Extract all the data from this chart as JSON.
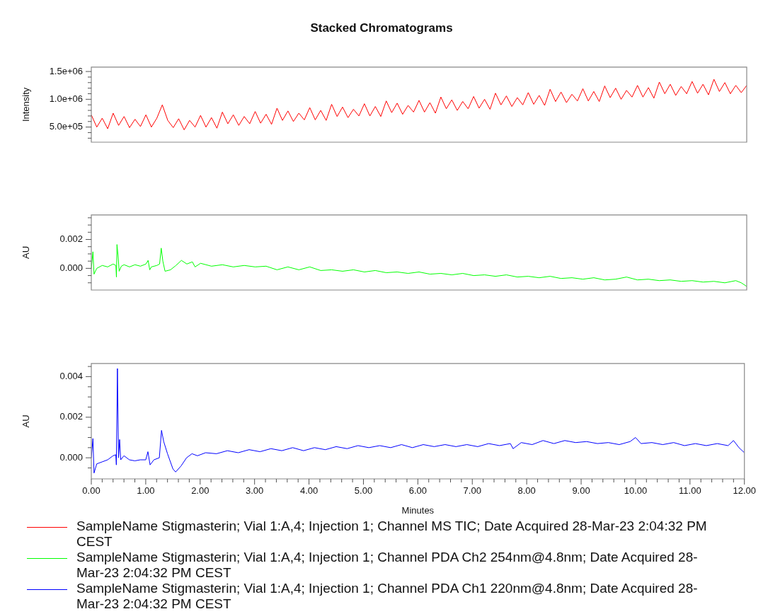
{
  "chart_data": [
    {
      "type": "line",
      "title": "Stacked Chromatograms",
      "ylabel": "Intensity",
      "xlim": [
        0,
        12
      ],
      "ylim": [
        228000,
        1580000
      ],
      "tick_labels": "y",
      "legend": "bottom",
      "yticks": [
        {
          "value": 300000,
          "label": null
        },
        {
          "value": 400000,
          "label": null
        },
        {
          "value": 500000,
          "label": "5.0e+05"
        },
        {
          "value": 600000,
          "label": null
        },
        {
          "value": 700000,
          "label": null
        },
        {
          "value": 800000,
          "label": null
        },
        {
          "value": 900000,
          "label": null
        },
        {
          "value": 1000000,
          "label": "1.0e+06"
        },
        {
          "value": 1100000,
          "label": null
        },
        {
          "value": 1200000,
          "label": null
        },
        {
          "value": 1300000,
          "label": null
        },
        {
          "value": 1400000,
          "label": null
        },
        {
          "value": 1500000,
          "label": "1.5e+06"
        }
      ],
      "series": [
        {
          "name": "SampleName Stigmasterin; Vial 1:A,4; Injection 1; Channel MS TIC; Date Acquired 28-Mar-23 2:04:32 PM CEST",
          "color": "#ff0000",
          "x": [
            0,
            0.1,
            0.2,
            0.3,
            0.4,
            0.5,
            0.6,
            0.7,
            0.8,
            0.9,
            1,
            1.1,
            1.2,
            1.3,
            1.4,
            1.5,
            1.6,
            1.7,
            1.8,
            1.9,
            2,
            2.1,
            2.2,
            2.3,
            2.4,
            2.5,
            2.6,
            2.7,
            2.8,
            2.9,
            3,
            3.1,
            3.2,
            3.3,
            3.4,
            3.5,
            3.6,
            3.7,
            3.8,
            3.9,
            4,
            4.1,
            4.2,
            4.3,
            4.4,
            4.5,
            4.6,
            4.7,
            4.8,
            4.9,
            5,
            5.1,
            5.2,
            5.3,
            5.4,
            5.5,
            5.6,
            5.7,
            5.8,
            5.9,
            6,
            6.1,
            6.2,
            6.3,
            6.4,
            6.5,
            6.6,
            6.7,
            6.8,
            6.9,
            7,
            7.1,
            7.2,
            7.3,
            7.4,
            7.5,
            7.6,
            7.7,
            7.8,
            7.9,
            8,
            8.1,
            8.2,
            8.3,
            8.4,
            8.5,
            8.6,
            8.7,
            8.8,
            8.9,
            9,
            9.1,
            9.2,
            9.3,
            9.4,
            9.5,
            9.6,
            9.7,
            9.8,
            9.9,
            10,
            10.1,
            10.2,
            10.3,
            10.4,
            10.5,
            10.6,
            10.7,
            10.8,
            10.9,
            11,
            11.1,
            11.2,
            11.3,
            11.4,
            11.5,
            11.6,
            11.7,
            11.8,
            11.9,
            12
          ],
          "values": [
            720000,
            500000,
            660000,
            470000,
            750000,
            530000,
            690000,
            490000,
            640000,
            510000,
            720000,
            500000,
            660000,
            900000,
            620000,
            490000,
            650000,
            450000,
            620000,
            500000,
            710000,
            500000,
            670000,
            480000,
            770000,
            560000,
            720000,
            530000,
            690000,
            560000,
            780000,
            570000,
            730000,
            550000,
            840000,
            620000,
            790000,
            600000,
            750000,
            630000,
            850000,
            630000,
            800000,
            620000,
            910000,
            690000,
            860000,
            670000,
            820000,
            700000,
            920000,
            700000,
            870000,
            690000,
            970000,
            760000,
            930000,
            730000,
            890000,
            770000,
            980000,
            770000,
            940000,
            750000,
            1040000,
            830000,
            990000,
            800000,
            960000,
            830000,
            1050000,
            840000,
            1000000,
            820000,
            1110000,
            900000,
            1060000,
            870000,
            1030000,
            900000,
            1120000,
            910000,
            1070000,
            890000,
            1180000,
            960000,
            1130000,
            940000,
            1090000,
            970000,
            1190000,
            970000,
            1140000,
            960000,
            1240000,
            1030000,
            1200000,
            1000000,
            1160000,
            1040000,
            1250000,
            1040000,
            1210000,
            1020000,
            1310000,
            1100000,
            1270000,
            1070000,
            1230000,
            1100000,
            1320000,
            1110000,
            1270000,
            1080000,
            1360000,
            1140000,
            1300000,
            1100000,
            1250000,
            1120000,
            1250000
          ]
        }
      ]
    },
    {
      "type": "line",
      "ylabel": "AU",
      "xlim": [
        0,
        12
      ],
      "ylim": [
        -0.0015,
        0.0037
      ],
      "tick_labels": "y",
      "legend": "bottom",
      "yticks": [
        {
          "value": -0.001,
          "label": null
        },
        {
          "value": -0.0005,
          "label": null
        },
        {
          "value": 0,
          "label": "0.000"
        },
        {
          "value": 0.0005,
          "label": null
        },
        {
          "value": 0.001,
          "label": null
        },
        {
          "value": 0.0015,
          "label": null
        },
        {
          "value": 0.002,
          "label": "0.002"
        },
        {
          "value": 0.0025,
          "label": null
        },
        {
          "value": 0.003,
          "label": null
        },
        {
          "value": 0.0035,
          "label": null
        }
      ],
      "series": [
        {
          "name": "SampleName Stigmasterin; Vial 1:A,4; Injection 1; Channel PDA Ch2 254nm@4.8nm; Date Acquired 28-Mar-23 2:04:32 PM CEST",
          "color": "#00ff00",
          "x": [
            0,
            0.03,
            0.05,
            0.1,
            0.2,
            0.3,
            0.4,
            0.45,
            0.46,
            0.47,
            0.49,
            0.51,
            0.55,
            0.6,
            0.7,
            0.8,
            0.9,
            1,
            1.04,
            1.07,
            1.1,
            1.2,
            1.25,
            1.28,
            1.31,
            1.35,
            1.45,
            1.55,
            1.65,
            1.75,
            1.85,
            1.9,
            2,
            2.2,
            2.4,
            2.6,
            2.8,
            3,
            3.2,
            3.4,
            3.6,
            3.8,
            4,
            4.2,
            4.4,
            4.6,
            4.8,
            5,
            5.2,
            5.4,
            5.6,
            5.8,
            6,
            6.2,
            6.4,
            6.6,
            6.8,
            7,
            7.2,
            7.4,
            7.6,
            7.8,
            8,
            8.2,
            8.4,
            8.6,
            8.8,
            9,
            9.2,
            9.4,
            9.6,
            9.8,
            10,
            10.2,
            10.4,
            10.6,
            10.8,
            11,
            11.2,
            11.4,
            11.6,
            11.8,
            11.9,
            12
          ],
          "values": [
            0,
            0.00115,
            -0.0004,
            0,
            0.0002,
            0.0001,
            0.0003,
            0.0002,
            -0.0006,
            0.00165,
            0.0009,
            -0.0002,
            0.00015,
            0.00025,
            0.0001,
            0.00025,
            0.00015,
            0.0003,
            0.00055,
            -0.0001,
            0.0001,
            0.0002,
            0.0003,
            0.0014,
            0.0005,
            -0.0002,
            -0.0001,
            0.0002,
            0.00055,
            0.0003,
            0.00045,
            0.0001,
            0.00035,
            0.00015,
            0.00025,
            0.0001,
            0.0002,
            0.0001,
            0.00015,
            -0.0001,
            0.0001,
            -0.0001,
            0.0001,
            -0.00015,
            -0.0001,
            -0.0002,
            -0.0001,
            -0.00025,
            -0.00015,
            -0.0003,
            -0.00025,
            -0.00035,
            -0.00025,
            -0.0004,
            -0.00035,
            -0.00045,
            -0.00035,
            -0.0005,
            -0.00045,
            -0.00055,
            -0.00045,
            -0.0006,
            -0.00055,
            -0.00065,
            -0.00055,
            -0.0007,
            -0.00065,
            -0.00075,
            -0.00065,
            -0.0008,
            -0.00075,
            -0.0006,
            -0.0008,
            -0.00075,
            -0.00085,
            -0.0008,
            -0.0009,
            -0.00085,
            -0.00095,
            -0.0009,
            -0.001,
            -0.00085,
            -0.001,
            -0.00125
          ]
        }
      ]
    },
    {
      "type": "line",
      "ylabel": "AU",
      "xlabel": "Minutes",
      "xlim": [
        0,
        12
      ],
      "ylim": [
        -0.00104,
        0.00465
      ],
      "legend": "bottom",
      "xticks": [
        {
          "value": 0,
          "label": "0.00"
        },
        {
          "value": 0.2,
          "label": null
        },
        {
          "value": 0.4,
          "label": null
        },
        {
          "value": 0.6,
          "label": null
        },
        {
          "value": 0.8,
          "label": null
        },
        {
          "value": 1,
          "label": "1.00"
        },
        {
          "value": 1.2,
          "label": null
        },
        {
          "value": 1.4,
          "label": null
        },
        {
          "value": 1.6,
          "label": null
        },
        {
          "value": 1.8,
          "label": null
        },
        {
          "value": 2,
          "label": "2.00"
        },
        {
          "value": 2.2,
          "label": null
        },
        {
          "value": 2.4,
          "label": null
        },
        {
          "value": 2.6,
          "label": null
        },
        {
          "value": 2.8,
          "label": null
        },
        {
          "value": 3,
          "label": "3.00"
        },
        {
          "value": 3.2,
          "label": null
        },
        {
          "value": 3.4,
          "label": null
        },
        {
          "value": 3.6,
          "label": null
        },
        {
          "value": 3.8,
          "label": null
        },
        {
          "value": 4,
          "label": "4.00"
        },
        {
          "value": 4.2,
          "label": null
        },
        {
          "value": 4.4,
          "label": null
        },
        {
          "value": 4.6,
          "label": null
        },
        {
          "value": 4.8,
          "label": null
        },
        {
          "value": 5,
          "label": "5.00"
        },
        {
          "value": 5.2,
          "label": null
        },
        {
          "value": 5.4,
          "label": null
        },
        {
          "value": 5.6,
          "label": null
        },
        {
          "value": 5.8,
          "label": null
        },
        {
          "value": 6,
          "label": "6.00"
        },
        {
          "value": 6.2,
          "label": null
        },
        {
          "value": 6.4,
          "label": null
        },
        {
          "value": 6.6,
          "label": null
        },
        {
          "value": 6.8,
          "label": null
        },
        {
          "value": 7,
          "label": "7.00"
        },
        {
          "value": 7.2,
          "label": null
        },
        {
          "value": 7.4,
          "label": null
        },
        {
          "value": 7.6,
          "label": null
        },
        {
          "value": 7.8,
          "label": null
        },
        {
          "value": 8,
          "label": "8.00"
        },
        {
          "value": 8.2,
          "label": null
        },
        {
          "value": 8.4,
          "label": null
        },
        {
          "value": 8.6,
          "label": null
        },
        {
          "value": 8.8,
          "label": null
        },
        {
          "value": 9,
          "label": "9.00"
        },
        {
          "value": 9.2,
          "label": null
        },
        {
          "value": 9.4,
          "label": null
        },
        {
          "value": 9.6,
          "label": null
        },
        {
          "value": 9.8,
          "label": null
        },
        {
          "value": 10,
          "label": "10.00"
        },
        {
          "value": 10.2,
          "label": null
        },
        {
          "value": 10.4,
          "label": null
        },
        {
          "value": 10.6,
          "label": null
        },
        {
          "value": 10.8,
          "label": null
        },
        {
          "value": 11,
          "label": "11.00"
        },
        {
          "value": 11.2,
          "label": null
        },
        {
          "value": 11.4,
          "label": null
        },
        {
          "value": 11.6,
          "label": null
        },
        {
          "value": 11.8,
          "label": null
        },
        {
          "value": 12,
          "label": "12.00"
        }
      ],
      "yticks": [
        {
          "value": -0.0005,
          "label": null
        },
        {
          "value": 0,
          "label": "0.000"
        },
        {
          "value": 0.0005,
          "label": null
        },
        {
          "value": 0.001,
          "label": null
        },
        {
          "value": 0.0015,
          "label": null
        },
        {
          "value": 0.002,
          "label": "0.002"
        },
        {
          "value": 0.0025,
          "label": null
        },
        {
          "value": 0.003,
          "label": null
        },
        {
          "value": 0.0035,
          "label": null
        },
        {
          "value": 0.004,
          "label": "0.004"
        },
        {
          "value": 0.0045,
          "label": null
        }
      ],
      "series": [
        {
          "name": "SampleName Stigmasterin; Vial 1:A,4; Injection 1; Channel PDA Ch1 220nm@4.8nm; Date Acquired 28-Mar-23 2:04:32 PM CEST",
          "color": "#0000ff",
          "x": [
            0,
            0.03,
            0.05,
            0.1,
            0.2,
            0.3,
            0.4,
            0.45,
            0.46,
            0.48,
            0.5,
            0.52,
            0.54,
            0.6,
            0.7,
            0.8,
            0.9,
            1,
            1.04,
            1.08,
            1.15,
            1.25,
            1.29,
            1.33,
            1.4,
            1.5,
            1.55,
            1.65,
            1.75,
            1.85,
            1.95,
            2.1,
            2.3,
            2.5,
            2.7,
            2.9,
            3.1,
            3.3,
            3.5,
            3.7,
            3.9,
            4.1,
            4.3,
            4.5,
            4.7,
            4.9,
            5.1,
            5.3,
            5.5,
            5.7,
            5.9,
            6.1,
            6.3,
            6.5,
            6.7,
            6.9,
            7.1,
            7.3,
            7.5,
            7.7,
            7.75,
            7.9,
            8.1,
            8.3,
            8.5,
            8.7,
            8.9,
            9.1,
            9.3,
            9.5,
            9.7,
            9.9,
            10,
            10.1,
            10.3,
            10.5,
            10.7,
            10.9,
            11.1,
            11.3,
            11.5,
            11.7,
            11.8,
            11.9,
            12
          ],
          "values": [
            0,
            0.00095,
            -0.00075,
            -0.0003,
            -0.0002,
            -0.0001,
            0.0001,
            0.00015,
            -0.00035,
            0.0044,
            0,
            0.0009,
            -0.0001,
            0.0001,
            -0.0001,
            -0.00015,
            -0.0001,
            -0.0001,
            0.0003,
            -0.00035,
            -0.0001,
            0,
            0.00135,
            0.0008,
            0.0002,
            -0.00055,
            -0.0007,
            -0.0004,
            0,
            0.0002,
            0.0001,
            0.00025,
            0.0002,
            0.00035,
            0.00025,
            0.0004,
            0.0003,
            0.00045,
            0.00035,
            0.0005,
            0.00035,
            0.0005,
            0.0004,
            0.00055,
            0.00045,
            0.0006,
            0.0005,
            0.0006,
            0.0005,
            0.00065,
            0.0005,
            0.00065,
            0.00055,
            0.00065,
            0.00055,
            0.00065,
            0.00055,
            0.0007,
            0.0006,
            0.0007,
            0.00045,
            0.00075,
            0.00065,
            0.00085,
            0.0007,
            0.00085,
            0.00075,
            0.0008,
            0.0007,
            0.00075,
            0.00065,
            0.0008,
            0.001,
            0.0007,
            0.00075,
            0.00065,
            0.00075,
            0.0006,
            0.0007,
            0.0006,
            0.0007,
            0.0006,
            0.00085,
            0.0005,
            0.00025
          ]
        }
      ]
    }
  ]
}
